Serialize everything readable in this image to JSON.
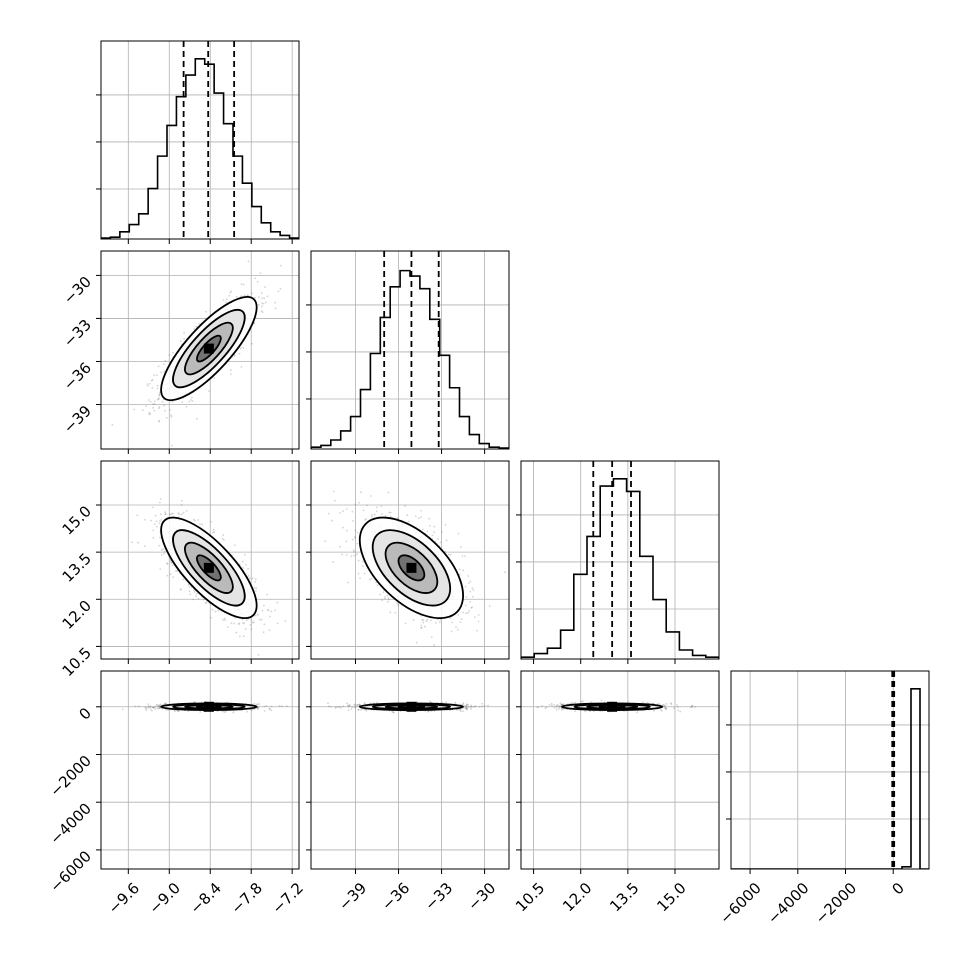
{
  "chart_data": {
    "type": "corner",
    "grid": true,
    "panels": {
      "histograms": [
        {
          "param_index": 0,
          "bin_range": [
            -10.0,
            -7.1
          ],
          "counts": [
            0.005,
            0.01,
            0.04,
            0.08,
            0.14,
            0.28,
            0.46,
            0.63,
            0.79,
            0.91,
            1.0,
            0.97,
            0.81,
            0.64,
            0.46,
            0.31,
            0.18,
            0.09,
            0.04,
            0.02,
            0.005
          ],
          "quantiles": [
            -8.79,
            -8.43,
            -8.05
          ]
        },
        {
          "param_index": 1,
          "bin_range": [
            -42.1,
            -28.3
          ],
          "counts": [
            0.01,
            0.02,
            0.05,
            0.1,
            0.18,
            0.33,
            0.53,
            0.73,
            0.9,
            0.99,
            0.96,
            0.89,
            0.72,
            0.52,
            0.34,
            0.18,
            0.08,
            0.03,
            0.01,
            0.005
          ],
          "quantiles": [
            -37.0,
            -35.1,
            -33.2
          ]
        },
        {
          "param_index": 2,
          "bin_range": [
            10.1,
            16.4
          ],
          "counts": [
            0.01,
            0.03,
            0.06,
            0.16,
            0.47,
            0.68,
            0.96,
            1.0,
            0.93,
            0.57,
            0.33,
            0.15,
            0.05,
            0.02,
            0.01
          ],
          "quantiles": [
            12.4,
            13.0,
            13.6
          ]
        },
        {
          "param_index": 3,
          "bin_range": [
            -6800,
            1500
          ],
          "counts": [
            0,
            0,
            0,
            0,
            0,
            0,
            0,
            0,
            0,
            0,
            0,
            0,
            0,
            0,
            0,
            0,
            0,
            0,
            0,
            0.012,
            1.0,
            0
          ],
          "quantiles": [
            -40,
            0,
            40
          ]
        }
      ],
      "scatter_pairs": [
        {
          "x_param": 0,
          "y_param": 1,
          "x_mean": -8.42,
          "y_mean": -35.1,
          "x_sd": 0.35,
          "y_sd": 1.8,
          "corr": 0.8
        },
        {
          "x_param": 0,
          "y_param": 2,
          "x_mean": -8.42,
          "y_mean": 13.0,
          "x_sd": 0.35,
          "y_sd": 0.8,
          "corr": -0.75
        },
        {
          "x_param": 1,
          "y_param": 2,
          "x_mean": -35.1,
          "y_mean": 13.0,
          "x_sd": 1.8,
          "y_sd": 0.8,
          "corr": -0.55
        },
        {
          "x_param": 0,
          "y_param": 3,
          "x_mean": -8.42,
          "y_mean": 0,
          "x_sd": 0.35,
          "y_sd": 70,
          "corr": 0
        },
        {
          "x_param": 1,
          "y_param": 3,
          "x_mean": -35.1,
          "y_mean": 0,
          "x_sd": 1.8,
          "y_sd": 70,
          "corr": 0
        },
        {
          "x_param": 2,
          "y_param": 3,
          "x_mean": 13.0,
          "y_mean": 0,
          "x_sd": 0.8,
          "y_sd": 70,
          "corr": 0
        }
      ]
    },
    "parameters": [
      {
        "range": [
          -10.0,
          -7.1
        ],
        "ticks": [
          -9.6,
          -9.0,
          -8.4,
          -7.8,
          -7.2
        ],
        "tick_labels": [
          "−9.6",
          "−9.0",
          "−8.4",
          "−7.8",
          "−7.2"
        ]
      },
      {
        "range": [
          -42.1,
          -28.3
        ],
        "ticks": [
          -39,
          -36,
          -33,
          -30
        ],
        "tick_labels": [
          "−39",
          "−36",
          "−33",
          "−30"
        ]
      },
      {
        "range": [
          10.1,
          16.4
        ],
        "ticks": [
          10.5,
          12.0,
          13.5,
          15.0
        ],
        "tick_labels": [
          "10.5",
          "12.0",
          "13.5",
          "15.0"
        ]
      },
      {
        "range": [
          -6800,
          1500
        ],
        "ticks": [
          -6000,
          -4000,
          -2000,
          0
        ],
        "tick_labels": [
          "−6000",
          "−4000",
          "−2000",
          "0"
        ]
      }
    ]
  }
}
